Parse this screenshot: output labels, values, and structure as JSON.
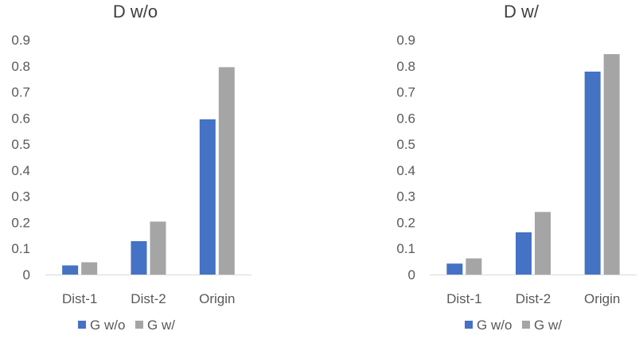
{
  "chart_data": [
    {
      "type": "bar",
      "title": "D w/o",
      "categories": [
        "Dist-1",
        "Dist-2",
        "Origin"
      ],
      "series": [
        {
          "name": "G w/o",
          "values": [
            0.035,
            0.128,
            0.595
          ]
        },
        {
          "name": "G w/",
          "values": [
            0.047,
            0.203,
            0.795
          ]
        }
      ],
      "ylim": [
        0,
        0.9
      ],
      "yticks": [
        "0",
        "0.1",
        "0.2",
        "0.3",
        "0.4",
        "0.5",
        "0.6",
        "0.7",
        "0.8",
        "0.9"
      ],
      "grid": false,
      "legend": "bottom"
    },
    {
      "type": "bar",
      "title": "D w/",
      "categories": [
        "Dist-1",
        "Dist-2",
        "Origin"
      ],
      "series": [
        {
          "name": "G w/o",
          "values": [
            0.042,
            0.162,
            0.778
          ]
        },
        {
          "name": "G w/",
          "values": [
            0.062,
            0.24,
            0.845
          ]
        }
      ],
      "ylim": [
        0,
        0.9
      ],
      "yticks": [
        "0",
        "0.1",
        "0.2",
        "0.3",
        "0.4",
        "0.5",
        "0.6",
        "0.7",
        "0.8",
        "0.9"
      ],
      "grid": false,
      "legend": "bottom"
    }
  ],
  "colors": {
    "series": [
      "#4472C4",
      "#A5A5A5"
    ],
    "axis": "#D9D9D9",
    "text": "#595959"
  }
}
